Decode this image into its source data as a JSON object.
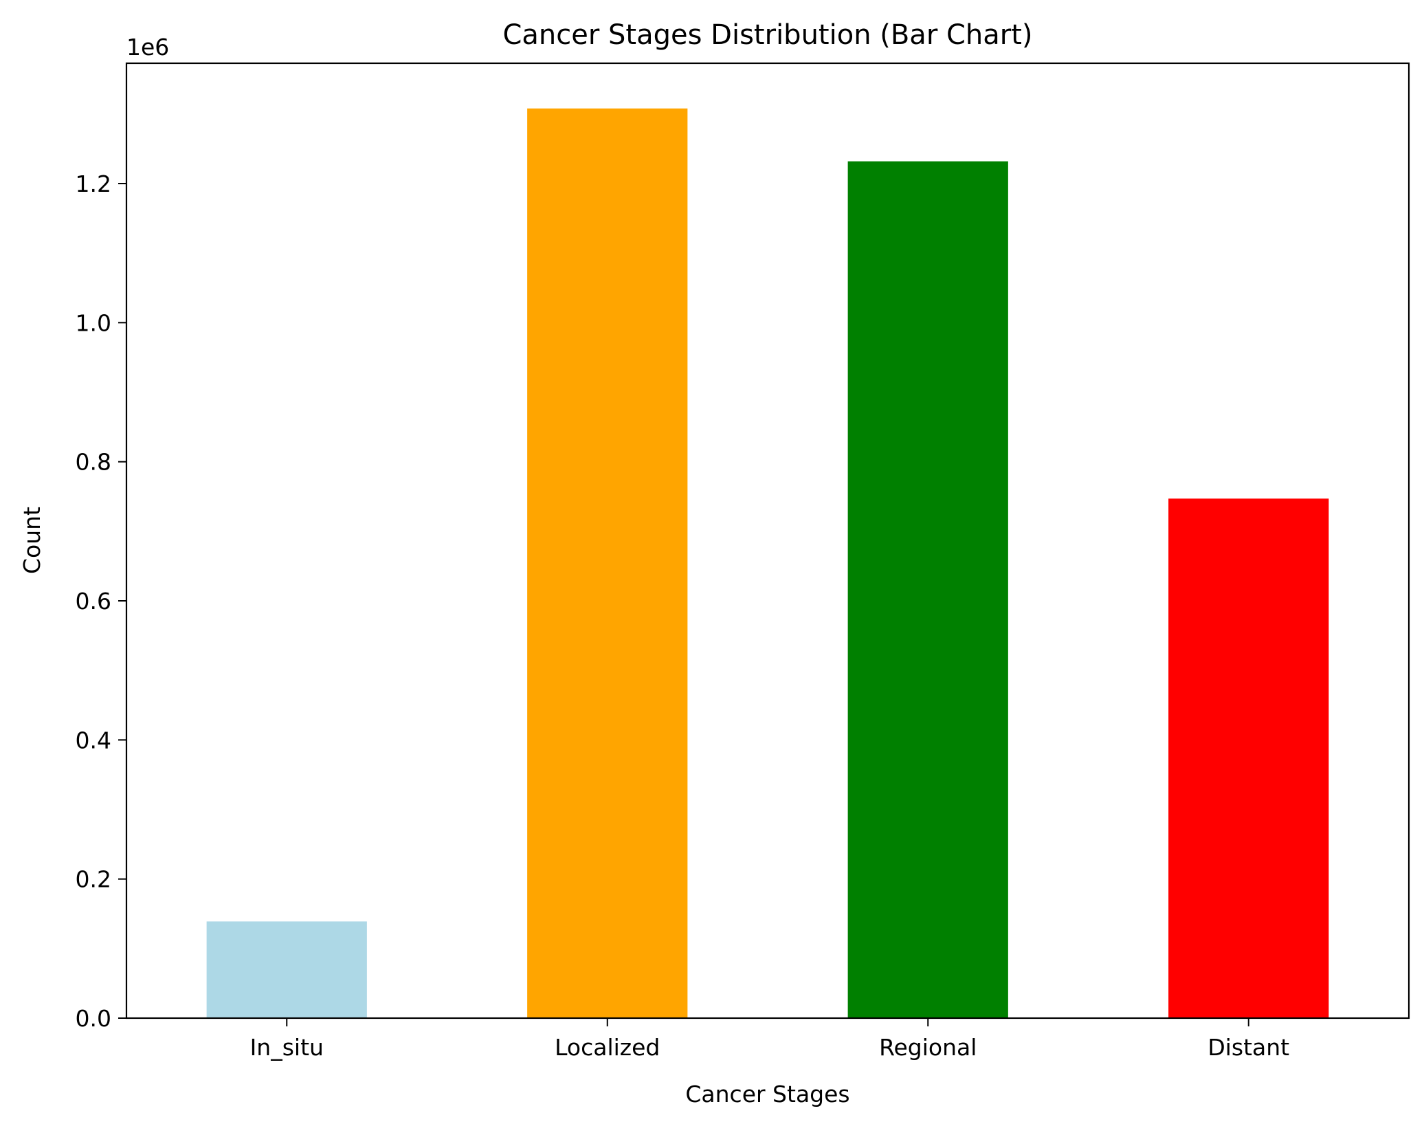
{
  "chart_data": {
    "type": "bar",
    "title": "Cancer Stages Distribution (Bar Chart)",
    "xlabel": "Cancer Stages",
    "ylabel": "Count",
    "y_offset_label": "1e6",
    "categories": [
      "In_situ",
      "Localized",
      "Regional",
      "Distant"
    ],
    "values": [
      139000,
      1308000,
      1232000,
      747000
    ],
    "colors": [
      "#add8e6",
      "#ffa500",
      "#008000",
      "#ff0000"
    ],
    "ylim": [
      0,
      1373000
    ],
    "yticks": [
      0.0,
      0.2,
      0.4,
      0.6,
      0.8,
      1.0,
      1.2
    ],
    "ytick_labels": [
      "0.0",
      "0.2",
      "0.4",
      "0.6",
      "0.8",
      "1.0",
      "1.2"
    ],
    "ytick_multiplier": 1000000,
    "grid": false,
    "legend": "none"
  }
}
